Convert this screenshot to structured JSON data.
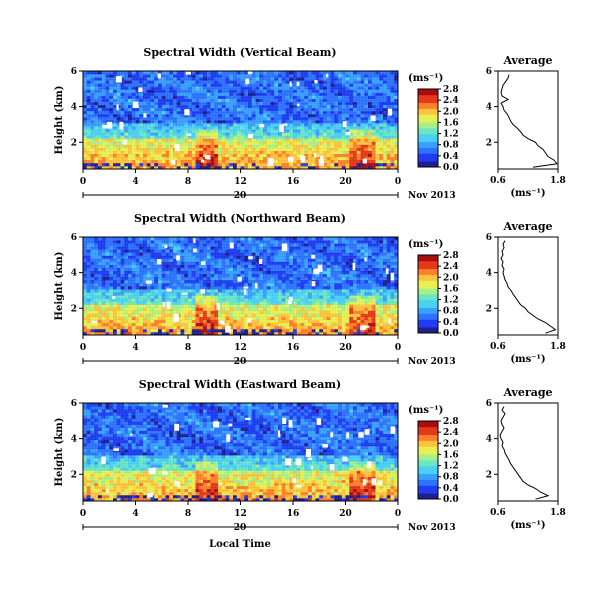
{
  "colormap": [
    "#1f1f8f",
    "#1e3cf0",
    "#2d73ff",
    "#3aa0ff",
    "#4bd0f5",
    "#6be6c0",
    "#a6f08a",
    "#e6f055",
    "#ffc23c",
    "#ff7f2a",
    "#e23a1a",
    "#a80e0e"
  ],
  "chart_data": [
    {
      "type": "heatmap",
      "name_key": "vertical",
      "title": "Spectral Width (Vertical Beam)",
      "ylabel": "Height (km)",
      "x_ticks": [
        "0",
        "4",
        "8",
        "12",
        "16",
        "20",
        "0"
      ],
      "xlim": [
        0,
        24
      ],
      "y_ticks": [
        "2",
        "4",
        "6"
      ],
      "ylim": [
        0.5,
        6
      ],
      "date_day": "20",
      "date_month": "Nov 2013",
      "colorbar": {
        "unit": "(ms⁻¹)",
        "ticks": [
          "0.0",
          "0.4",
          "0.8",
          "1.2",
          "1.6",
          "2.0",
          "2.4",
          "2.8"
        ],
        "range": [
          0,
          2.8
        ]
      },
      "profile": {
        "title": "Average",
        "xlabel": "(ms⁻¹)",
        "x_ticks": [
          "0.6",
          "1.8"
        ],
        "xlim": [
          0.6,
          1.8
        ],
        "y_ticks": [
          "2",
          "4",
          "6"
        ],
        "ylim": [
          0.5,
          6
        ],
        "heights": [
          0.6,
          0.8,
          1.0,
          1.2,
          1.4,
          1.6,
          1.8,
          2.0,
          2.2,
          2.4,
          2.6,
          2.8,
          3.0,
          3.2,
          3.4,
          3.6,
          3.8,
          4.0,
          4.2,
          4.4,
          4.6,
          4.8,
          5.0,
          5.2,
          5.4,
          5.6,
          5.8
        ],
        "values": [
          1.3,
          1.78,
          1.72,
          1.6,
          1.55,
          1.5,
          1.4,
          1.35,
          1.2,
          1.1,
          1.05,
          0.98,
          0.9,
          0.85,
          0.82,
          0.78,
          0.72,
          0.7,
          0.66,
          0.8,
          0.68,
          0.66,
          0.68,
          0.7,
          0.75,
          0.8,
          0.82
        ]
      }
    },
    {
      "type": "heatmap",
      "name_key": "northward",
      "title": "Spectral Width (Northward Beam)",
      "ylabel": "Height (km)",
      "x_ticks": [
        "0",
        "4",
        "8",
        "12",
        "16",
        "20",
        "0"
      ],
      "xlim": [
        0,
        24
      ],
      "y_ticks": [
        "2",
        "4",
        "6"
      ],
      "ylim": [
        0.5,
        6
      ],
      "date_day": "20",
      "date_month": "Nov 2013",
      "colorbar": {
        "unit": "(ms⁻¹)",
        "ticks": [
          "0.0",
          "0.4",
          "0.8",
          "1.2",
          "1.6",
          "2.0",
          "2.4",
          "2.8"
        ],
        "range": [
          0,
          2.8
        ]
      },
      "profile": {
        "title": "Average",
        "xlabel": "(ms⁻¹)",
        "x_ticks": [
          "0.6",
          "1.8"
        ],
        "xlim": [
          0.6,
          1.8
        ],
        "y_ticks": [
          "2",
          "4",
          "6"
        ],
        "ylim": [
          0.5,
          6
        ],
        "heights": [
          0.6,
          0.8,
          1.0,
          1.2,
          1.4,
          1.6,
          1.8,
          2.0,
          2.2,
          2.4,
          2.6,
          2.8,
          3.0,
          3.2,
          3.4,
          3.6,
          3.8,
          4.0,
          4.2,
          4.4,
          4.6,
          4.8,
          5.0,
          5.2,
          5.4,
          5.6,
          5.8
        ],
        "values": [
          1.55,
          1.75,
          1.65,
          1.55,
          1.4,
          1.3,
          1.2,
          1.15,
          1.05,
          1.0,
          0.95,
          0.9,
          0.86,
          0.8,
          0.78,
          0.74,
          0.72,
          0.7,
          0.72,
          0.68,
          0.7,
          0.66,
          0.7,
          0.68,
          0.72,
          0.7,
          0.74
        ]
      }
    },
    {
      "type": "heatmap",
      "name_key": "eastward",
      "title": "Spectral Width (Eastward Beam)",
      "ylabel": "Height (km)",
      "xlabel": "Local Time",
      "x_ticks": [
        "0",
        "4",
        "8",
        "12",
        "16",
        "20",
        "0"
      ],
      "xlim": [
        0,
        24
      ],
      "y_ticks": [
        "2",
        "4",
        "6"
      ],
      "ylim": [
        0.5,
        6
      ],
      "date_day": "20",
      "date_month": "Nov 2013",
      "colorbar": {
        "unit": "(ms⁻¹)",
        "ticks": [
          "0.0",
          "0.4",
          "0.8",
          "1.2",
          "1.6",
          "2.0",
          "2.4",
          "2.8"
        ],
        "range": [
          0,
          2.8
        ]
      },
      "profile": {
        "title": "Average",
        "xlabel": "(ms⁻¹)",
        "x_ticks": [
          "0.6",
          "1.8"
        ],
        "xlim": [
          0.6,
          1.8
        ],
        "y_ticks": [
          "2",
          "4",
          "6"
        ],
        "ylim": [
          0.5,
          6
        ],
        "heights": [
          0.6,
          0.8,
          1.0,
          1.2,
          1.4,
          1.6,
          1.8,
          2.0,
          2.2,
          2.4,
          2.6,
          2.8,
          3.0,
          3.2,
          3.4,
          3.6,
          3.8,
          4.0,
          4.2,
          4.4,
          4.6,
          4.8,
          5.0,
          5.2,
          5.4,
          5.6,
          5.8
        ],
        "values": [
          1.35,
          1.6,
          1.45,
          1.35,
          1.2,
          1.1,
          1.05,
          1.0,
          0.95,
          0.9,
          0.85,
          0.82,
          0.78,
          0.74,
          0.72,
          0.68,
          0.7,
          0.66,
          0.64,
          0.68,
          0.72,
          0.68,
          0.66,
          0.7,
          0.74,
          0.68,
          0.72
        ]
      }
    }
  ]
}
